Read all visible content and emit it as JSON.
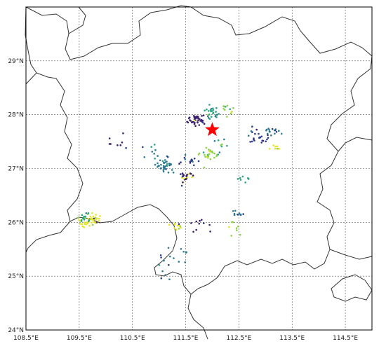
{
  "map": {
    "lon_range": [
      108.5,
      115.0
    ],
    "lat_range": [
      24.0,
      30.0
    ],
    "gridlines": "dashed",
    "x_ticks": [
      {
        "value": 108.5,
        "label": "108.5°E"
      },
      {
        "value": 109.5,
        "label": "109.5°E"
      },
      {
        "value": 110.5,
        "label": "110.5°E"
      },
      {
        "value": 111.5,
        "label": "111.5°E"
      },
      {
        "value": 112.5,
        "label": "112.5°E"
      },
      {
        "value": 113.5,
        "label": "113.5°E"
      },
      {
        "value": 114.5,
        "label": "114.5°E"
      }
    ],
    "y_ticks": [
      {
        "value": 24,
        "label": "24°N"
      },
      {
        "value": 25,
        "label": "25°N"
      },
      {
        "value": 26,
        "label": "26°N"
      },
      {
        "value": 27,
        "label": "27°N"
      },
      {
        "value": 28,
        "label": "28°N"
      },
      {
        "value": 29,
        "label": "29°N"
      }
    ],
    "star": {
      "lon": 112.0,
      "lat": 27.72,
      "color": "#ff0000"
    },
    "colors": [
      "#3b1f6e",
      "#2c3f8a",
      "#2f7a8e",
      "#2aa67e",
      "#8fd14b",
      "#e6e41c"
    ],
    "clusters": [
      {
        "lon": 111.7,
        "lat": 27.9,
        "n": 40,
        "spread": 0.06,
        "color_index": 0
      },
      {
        "lon": 112.0,
        "lat": 28.0,
        "n": 25,
        "spread": 0.07,
        "color_index": 3
      },
      {
        "lon": 112.3,
        "lat": 28.05,
        "n": 12,
        "spread": 0.05,
        "color_index": 4
      },
      {
        "lon": 112.9,
        "lat": 27.6,
        "n": 25,
        "spread": 0.07,
        "color_index": 1
      },
      {
        "lon": 113.1,
        "lat": 27.7,
        "n": 15,
        "spread": 0.05,
        "color_index": 2
      },
      {
        "lon": 113.2,
        "lat": 27.4,
        "n": 8,
        "spread": 0.04,
        "color_index": 5
      },
      {
        "lon": 111.1,
        "lat": 27.05,
        "n": 40,
        "spread": 0.06,
        "color_index": 2
      },
      {
        "lon": 111.55,
        "lat": 27.15,
        "n": 15,
        "spread": 0.05,
        "color_index": 1
      },
      {
        "lon": 111.5,
        "lat": 26.85,
        "n": 25,
        "spread": 0.05,
        "color_index": 0
      },
      {
        "lon": 111.95,
        "lat": 27.25,
        "n": 25,
        "spread": 0.07,
        "color_index": 4
      },
      {
        "lon": 112.2,
        "lat": 27.4,
        "n": 8,
        "spread": 0.06,
        "color_index": 3
      },
      {
        "lon": 109.7,
        "lat": 26.05,
        "n": 40,
        "spread": 0.07,
        "color_index": 5
      },
      {
        "lon": 109.6,
        "lat": 26.1,
        "n": 15,
        "spread": 0.05,
        "color_index": 3
      },
      {
        "lon": 111.3,
        "lat": 25.9,
        "n": 12,
        "spread": 0.05,
        "color_index": 5
      },
      {
        "lon": 112.5,
        "lat": 26.15,
        "n": 10,
        "spread": 0.04,
        "color_index": 2
      },
      {
        "lon": 112.4,
        "lat": 25.9,
        "n": 8,
        "spread": 0.05,
        "color_index": 4
      },
      {
        "lon": 111.25,
        "lat": 25.3,
        "n": 18,
        "spread": 0.15,
        "color_index": 2
      },
      {
        "lon": 111.85,
        "lat": 25.95,
        "n": 10,
        "spread": 0.12,
        "color_index": 0
      },
      {
        "lon": 112.6,
        "lat": 26.8,
        "n": 8,
        "spread": 0.05,
        "color_index": 3
      },
      {
        "lon": 110.2,
        "lat": 27.5,
        "n": 8,
        "spread": 0.08,
        "color_index": 0
      },
      {
        "lon": 110.9,
        "lat": 27.3,
        "n": 8,
        "spread": 0.1,
        "color_index": 2
      }
    ]
  }
}
